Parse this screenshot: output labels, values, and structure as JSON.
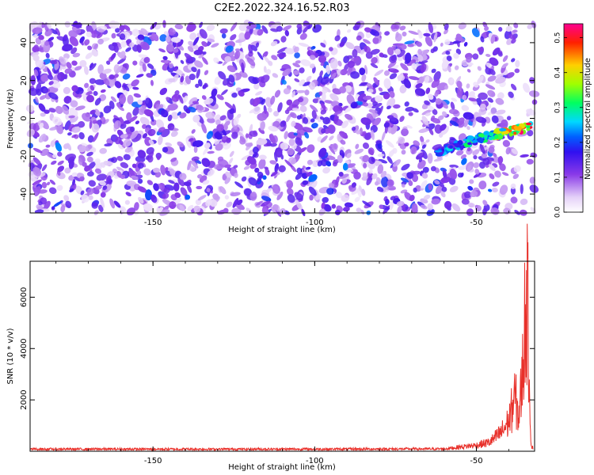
{
  "title": "C2E2.2022.324.16.52.R03",
  "colors": {
    "snr_line": "#e8302a",
    "spectro_background": "#ffffff",
    "colormap": [
      "#f0e4f8",
      "#c8a8f0",
      "#8a3ae8",
      "#5a10e0",
      "#0000ff",
      "#00c8ff",
      "#00ff40",
      "#c8ff00",
      "#ffd000",
      "#ff2000",
      "#ff0080"
    ]
  },
  "chart_data": [
    {
      "type": "heatmap",
      "xlabel": "Height of straight line (km)",
      "ylabel": "Frequency (Hz)",
      "xlim": [
        -188,
        -32
      ],
      "ylim": [
        -50,
        50
      ],
      "x_ticks": [
        -150,
        -100,
        -50
      ],
      "x_tick_labels": [
        "-150",
        "-100",
        "-50"
      ],
      "y_ticks": [
        -40,
        -20,
        0,
        20,
        40
      ],
      "y_tick_labels": [
        "-40",
        "-20",
        "0",
        "20",
        "40"
      ],
      "colorbar": {
        "label": "Normalized spectral amplitude",
        "range": [
          0,
          0.54
        ],
        "ticks": [
          0.0,
          0.1,
          0.2,
          0.3,
          0.4,
          0.5
        ],
        "tick_labels": [
          "0.0",
          "0.1",
          "0.2",
          "0.3",
          "0.4",
          "0.5"
        ]
      },
      "signal_track": {
        "x": [
          -62,
          -55,
          -50,
          -45,
          -40,
          -35,
          -33
        ],
        "freq": [
          -18,
          -14,
          -11,
          -9,
          -7,
          -5,
          -4
        ],
        "amplitude": [
          0.22,
          0.28,
          0.32,
          0.38,
          0.45,
          0.5,
          0.48
        ]
      },
      "noise_level": 0.08
    },
    {
      "type": "line",
      "xlabel": "Height of straight line (km)",
      "ylabel": "SNR (10 * v/v)",
      "xlim": [
        -188,
        -32
      ],
      "ylim": [
        0,
        7400
      ],
      "x_ticks": [
        -150,
        -100,
        -50
      ],
      "x_tick_labels": [
        "-150",
        "-100",
        "-50"
      ],
      "y_ticks": [
        2000,
        4000,
        6000
      ],
      "y_tick_labels": [
        "2000",
        "4000",
        "6000"
      ],
      "series": [
        {
          "color": "#e8302a",
          "x": [
            -188,
            -100,
            -60,
            -55,
            -50,
            -46,
            -44,
            -42,
            -40,
            -38,
            -37,
            -36,
            -35,
            -34.5,
            -34,
            -33.5,
            -33
          ],
          "values": [
            100,
            100,
            110,
            200,
            280,
            420,
            650,
            950,
            1400,
            2600,
            1600,
            3000,
            6100,
            7400,
            6200,
            2500,
            200
          ]
        }
      ]
    }
  ]
}
